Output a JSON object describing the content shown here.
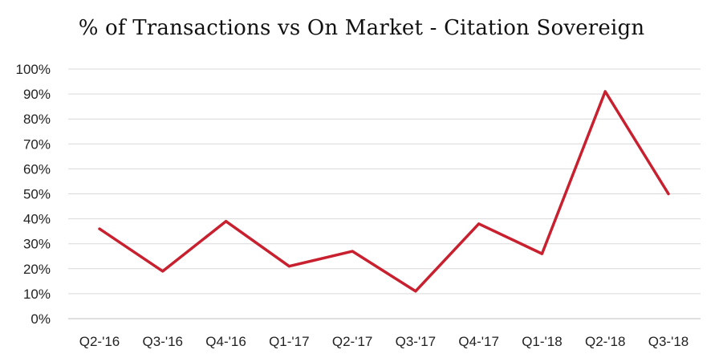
{
  "chart_data": {
    "type": "line",
    "title": "% of Transactions vs On Market - Citation Sovereign",
    "xlabel": "",
    "ylabel": "",
    "categories": [
      "Q2-'16",
      "Q3-'16",
      "Q4-'16",
      "Q1-'17",
      "Q2-'17",
      "Q3-'17",
      "Q4-'17",
      "Q1-'18",
      "Q2-'18",
      "Q3-'18"
    ],
    "series": [
      {
        "values": [
          36,
          19,
          39,
          21,
          27,
          11,
          38,
          26,
          91,
          50
        ],
        "color": "#c8202f"
      }
    ],
    "ylim": [
      0,
      100
    ],
    "yticks": [
      0,
      10,
      20,
      30,
      40,
      50,
      60,
      70,
      80,
      90,
      100
    ],
    "ytick_labels": [
      "0%",
      "10%",
      "20%",
      "30%",
      "40%",
      "50%",
      "60%",
      "70%",
      "80%",
      "90%",
      "100%"
    ],
    "grid": true,
    "legend": "none"
  }
}
